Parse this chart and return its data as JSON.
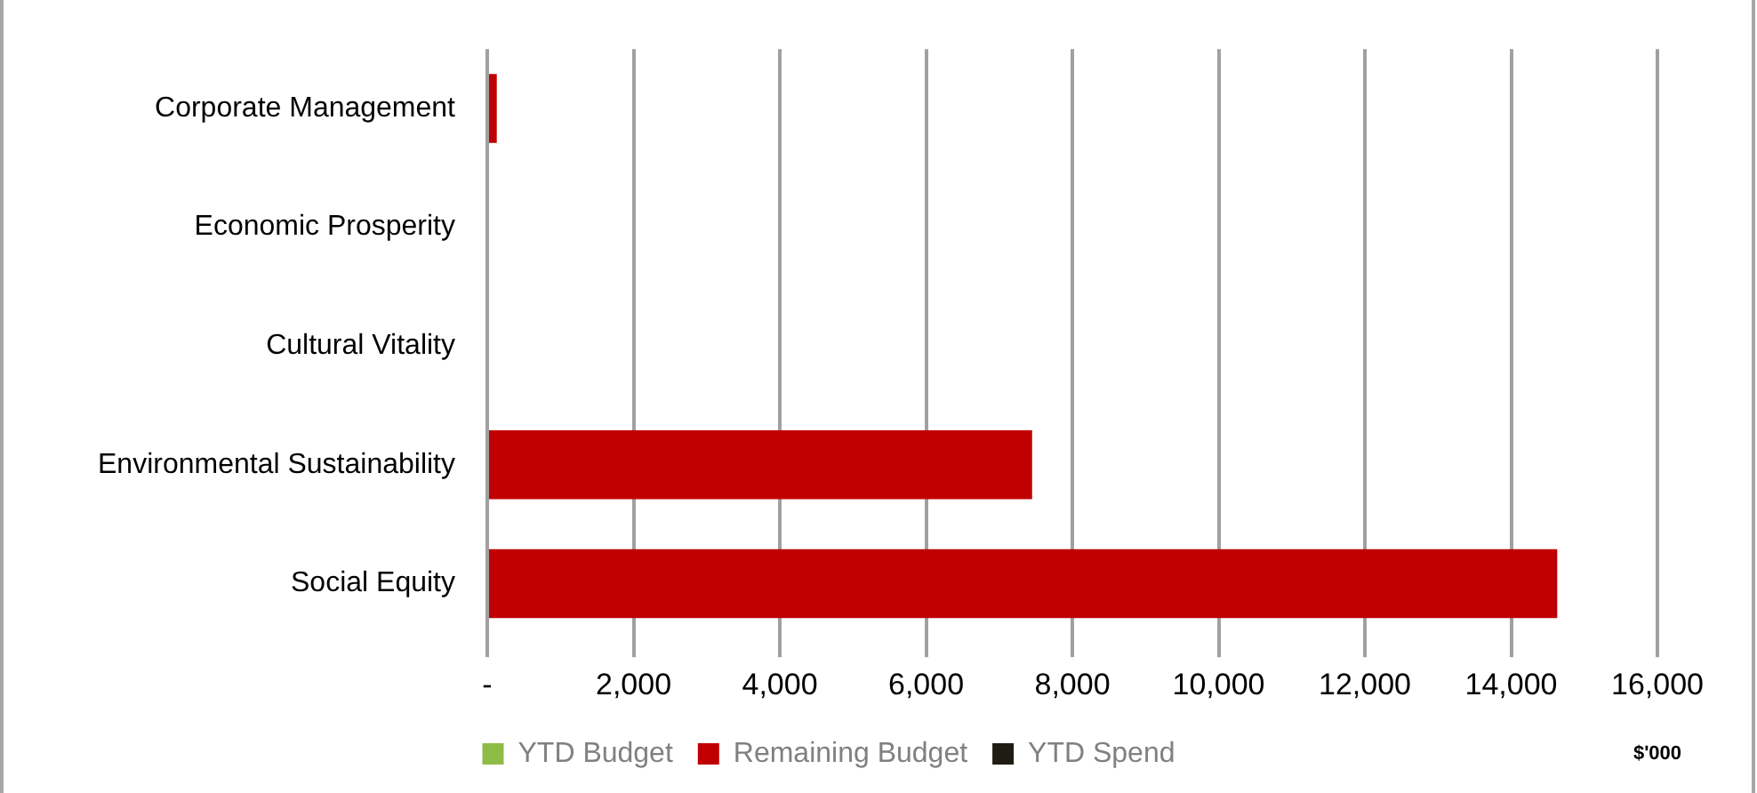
{
  "chart_data": {
    "type": "bar",
    "orientation": "horizontal",
    "stacked": true,
    "categories": [
      "Corporate Management",
      "Economic Prosperity",
      "Cultural Vitality",
      "Environmental Sustainability",
      "Social Equity"
    ],
    "series": [
      {
        "name": "YTD Budget",
        "color": "#8fbc45",
        "values": [
          0,
          0,
          0,
          0,
          0
        ]
      },
      {
        "name": "Remaining Budget",
        "color": "#c00000",
        "values": [
          130,
          0,
          null,
          7450,
          14630
        ]
      },
      {
        "name": "YTD Spend",
        "color": "#1f1c14",
        "values": [
          0,
          0,
          0,
          0,
          0
        ]
      }
    ],
    "xlabel": "$'000",
    "xlim": [
      0,
      16000
    ],
    "xticks": [
      {
        "value": 0,
        "label": "-"
      },
      {
        "value": 2000,
        "label": "2,000"
      },
      {
        "value": 4000,
        "label": "4,000"
      },
      {
        "value": 6000,
        "label": "6,000"
      },
      {
        "value": 8000,
        "label": "8,000"
      },
      {
        "value": 10000,
        "label": "10,000"
      },
      {
        "value": 12000,
        "label": "12,000"
      },
      {
        "value": 14000,
        "label": "14,000"
      },
      {
        "value": 16000,
        "label": "16,000"
      }
    ],
    "grid": "x",
    "legend": "bottom"
  }
}
